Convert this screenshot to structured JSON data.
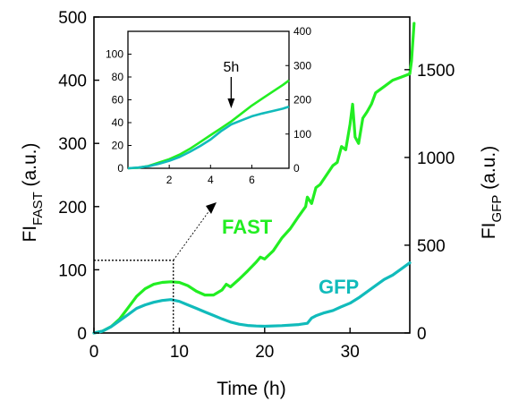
{
  "colors": {
    "fast": "#22ee22",
    "gfp": "#11bbbb",
    "axis": "#000000"
  },
  "labels": {
    "x_title": "Time (h)",
    "y_left_main": "FI",
    "y_left_sub": "FAST",
    "y_left_unit": "(a.u.)",
    "y_right_main": "FI",
    "y_right_sub": "GFP",
    "y_right_unit": "(a.u.)",
    "fast": "FAST",
    "gfp": "GFP",
    "inset_annotation": "5h"
  },
  "chart_data": [
    {
      "type": "line",
      "x_ticks": [
        0,
        10,
        20,
        30
      ],
      "y_left_ticks": [
        0,
        100,
        200,
        300,
        400,
        500
      ],
      "y_right_ticks": [
        0,
        500,
        1000,
        1500
      ],
      "xlim": [
        0,
        37
      ],
      "ylim_left": [
        0,
        500
      ],
      "ylim_right": [
        0,
        1800
      ],
      "zoom_box": {
        "x": [
          0,
          9.3
        ],
        "y_left": [
          0,
          115
        ]
      },
      "series": [
        {
          "name": "FAST",
          "axis": "left",
          "x": [
            0,
            1,
            2,
            3,
            4,
            5,
            6,
            7,
            8,
            9,
            10,
            11,
            12,
            13,
            14,
            15,
            15.5,
            16,
            17,
            18,
            19,
            19.5,
            20,
            21,
            22,
            23,
            24,
            24.8,
            25,
            25.5,
            26,
            26.5,
            27,
            28,
            28.5,
            29,
            29.5,
            30,
            30.3,
            30.6,
            31,
            31.5,
            32,
            32.5,
            33,
            34,
            35,
            36,
            37,
            37.2,
            37.5
          ],
          "y": [
            0,
            3,
            10,
            22,
            40,
            58,
            70,
            77,
            80,
            81,
            80,
            75,
            66,
            60,
            60,
            68,
            77,
            73,
            85,
            98,
            112,
            120,
            117,
            130,
            150,
            165,
            185,
            200,
            215,
            205,
            230,
            235,
            245,
            265,
            270,
            295,
            290,
            330,
            362,
            310,
            300,
            340,
            350,
            362,
            380,
            390,
            400,
            405,
            410,
            430,
            490
          ]
        },
        {
          "name": "GFP",
          "axis": "right",
          "x": [
            0,
            1,
            2,
            3,
            4,
            5,
            6,
            7,
            8,
            9,
            10,
            11,
            12,
            13,
            14,
            15,
            16,
            17,
            18,
            19,
            20,
            22,
            24,
            25,
            25.5,
            26,
            27,
            28,
            29,
            30,
            31,
            32,
            33,
            34,
            35,
            36,
            37
          ],
          "y": [
            0,
            10,
            35,
            70,
            105,
            140,
            160,
            175,
            185,
            190,
            180,
            160,
            140,
            120,
            100,
            80,
            62,
            50,
            43,
            40,
            38,
            42,
            48,
            55,
            85,
            98,
            115,
            128,
            150,
            170,
            200,
            235,
            270,
            305,
            330,
            365,
            400
          ]
        }
      ]
    },
    {
      "type": "line",
      "x_ticks": [
        2,
        4,
        6
      ],
      "y_left_ticks": [
        0,
        20,
        40,
        60,
        80,
        100
      ],
      "y_right_ticks": [
        0,
        100,
        200,
        300,
        400
      ],
      "xlim": [
        0,
        7.8
      ],
      "ylim_left": [
        0,
        120
      ],
      "ylim_right": [
        0,
        400
      ],
      "annotation_x": 5,
      "series": [
        {
          "name": "FAST",
          "axis": "left",
          "x": [
            0,
            0.5,
            1,
            1.5,
            2,
            2.5,
            3,
            3.5,
            4,
            4.5,
            5,
            5.5,
            6,
            6.5,
            7,
            7.5,
            7.8
          ],
          "y": [
            0,
            0.5,
            2,
            5,
            8,
            12,
            17,
            23,
            29,
            35,
            41,
            48,
            55,
            61,
            67,
            73,
            77
          ]
        },
        {
          "name": "GFP",
          "axis": "right",
          "x": [
            0,
            0.5,
            1,
            1.5,
            2,
            2.5,
            3,
            3.5,
            4,
            4.5,
            5,
            5.5,
            6,
            6.5,
            7,
            7.5,
            7.8
          ],
          "y": [
            0,
            2,
            6,
            13,
            22,
            33,
            48,
            65,
            84,
            108,
            128,
            140,
            152,
            160,
            167,
            174,
            180
          ]
        }
      ]
    }
  ]
}
